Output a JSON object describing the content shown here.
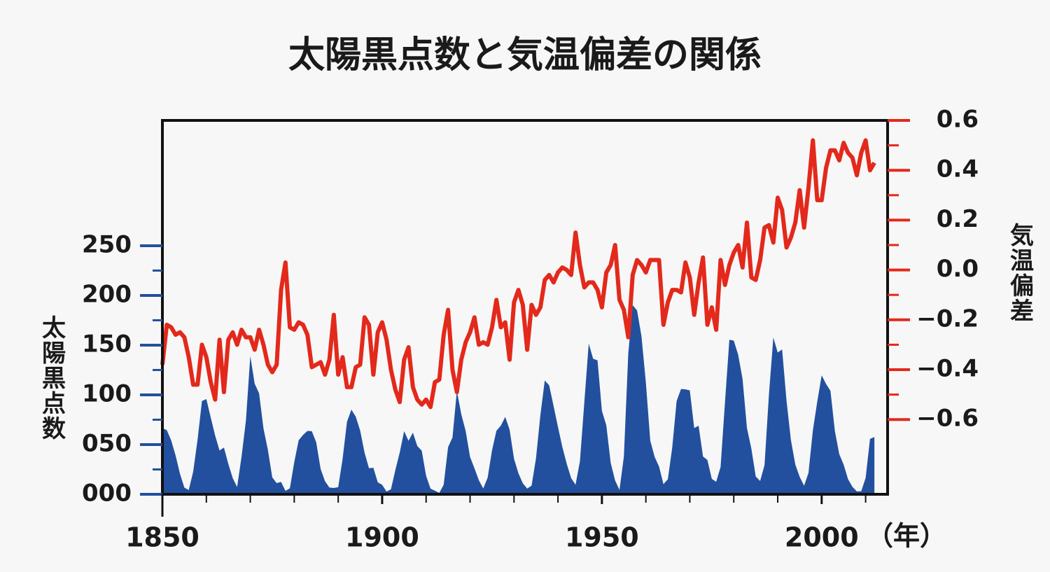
{
  "chart_data": {
    "type": "area-line",
    "title": "太陽黒点数と気温偏差の関係",
    "ylabel": "太陽黒点数",
    "y2label": "気温偏差",
    "xlabel": "（年）",
    "xlim": [
      1850,
      2015
    ],
    "xticks": [
      1850,
      1900,
      1950,
      2000
    ],
    "xminorticks": [
      1860,
      1870,
      1880,
      1890,
      1910,
      1920,
      1930,
      1940,
      1960,
      1970,
      1980,
      1990,
      2010
    ],
    "ylim": [
      0,
      376
    ],
    "yticks": [
      {
        "value": 0,
        "label": "000"
      },
      {
        "value": 50,
        "label": "050"
      },
      100,
      150,
      200,
      250
    ],
    "yminorticks": [
      25,
      75,
      125,
      175,
      225
    ],
    "y2lim": [
      -0.9,
      0.6
    ],
    "y2ticks": [
      0.6,
      0.4,
      0.2,
      {
        "value": 0,
        "label": "0.0"
      },
      {
        "value": -0.2,
        "label": "−0.2"
      },
      {
        "value": -0.4,
        "label": "−0.4"
      },
      {
        "value": -0.6,
        "label": "−0.6"
      }
    ],
    "y2minorticks": [
      0.5,
      0.3,
      0.1,
      -0.1,
      -0.3,
      -0.5
    ],
    "x": [
      1850,
      1851,
      1852,
      1853,
      1854,
      1855,
      1856,
      1857,
      1858,
      1859,
      1860,
      1861,
      1862,
      1863,
      1864,
      1865,
      1866,
      1867,
      1868,
      1869,
      1870,
      1871,
      1872,
      1873,
      1874,
      1875,
      1876,
      1877,
      1878,
      1879,
      1880,
      1881,
      1882,
      1883,
      1884,
      1885,
      1886,
      1887,
      1888,
      1889,
      1890,
      1891,
      1892,
      1893,
      1894,
      1895,
      1896,
      1897,
      1898,
      1899,
      1900,
      1901,
      1902,
      1903,
      1904,
      1905,
      1906,
      1907,
      1908,
      1909,
      1910,
      1911,
      1912,
      1913,
      1914,
      1915,
      1916,
      1917,
      1918,
      1919,
      1920,
      1921,
      1922,
      1923,
      1924,
      1925,
      1926,
      1927,
      1928,
      1929,
      1930,
      1931,
      1932,
      1933,
      1934,
      1935,
      1936,
      1937,
      1938,
      1939,
      1940,
      1941,
      1942,
      1943,
      1944,
      1945,
      1946,
      1947,
      1948,
      1949,
      1950,
      1951,
      1952,
      1953,
      1954,
      1955,
      1956,
      1957,
      1958,
      1959,
      1960,
      1961,
      1962,
      1963,
      1964,
      1965,
      1966,
      1967,
      1968,
      1969,
      1970,
      1971,
      1972,
      1973,
      1974,
      1975,
      1976,
      1977,
      1978,
      1979,
      1980,
      1981,
      1982,
      1983,
      1984,
      1985,
      1986,
      1987,
      1988,
      1989,
      1990,
      1991,
      1992,
      1993,
      1994,
      1995,
      1996,
      1997,
      1998,
      1999,
      2000,
      2001,
      2002,
      2003,
      2004,
      2005,
      2006,
      2007,
      2008,
      2009,
      2010,
      2011,
      2012
    ],
    "series": [
      {
        "kind": "area",
        "color": "#22509e",
        "values": [
          66.5,
          64.5,
          54.2,
          39,
          20.6,
          6.7,
          4.3,
          22.7,
          54.8,
          93.8,
          95.8,
          77.2,
          59.1,
          44,
          47,
          30.5,
          16.3,
          7.3,
          37.6,
          74,
          139,
          111.2,
          101.6,
          66.2,
          44.7,
          17,
          11.3,
          12.4,
          3.4,
          6,
          32.3,
          54.3,
          59.7,
          63.7,
          63.5,
          52.2,
          25.4,
          13.1,
          6.8,
          6.3,
          7.1,
          35.6,
          73,
          85.1,
          78,
          64,
          41.8,
          26.2,
          26.7,
          12.1,
          9.5,
          2.7,
          5,
          24.4,
          42,
          63.5,
          53.8,
          62,
          48.5,
          43.9,
          18.6,
          5.7,
          3.6,
          1.4,
          9.6,
          47.4,
          57.1,
          103.9,
          80.6,
          63.6,
          37.6,
          26.1,
          14.2,
          5.8,
          16.7,
          44.3,
          63.9,
          69,
          77.8,
          65,
          35.7,
          21.2,
          11.1,
          5.7,
          8.7,
          36.1,
          79.7,
          114.4,
          109.6,
          88.8,
          67.8,
          47.5,
          30.6,
          16.3,
          9.6,
          33.2,
          92.6,
          151.6,
          136.3,
          134.7,
          83.9,
          69.4,
          31.5,
          13.9,
          4.4,
          38,
          141.7,
          190.2,
          184.8,
          159,
          112.3,
          53.9,
          37.6,
          27.9,
          10.2,
          15.1,
          47,
          93.8,
          105.9,
          105.5,
          104.5,
          66.6,
          68.9,
          38,
          34.5,
          15.5,
          12.6,
          27.5,
          92.5,
          155.4,
          154.6,
          140.4,
          115.9,
          66.6,
          45.9,
          17.9,
          13.4,
          29.4,
          100.2,
          157.6,
          142.6,
          145.7,
          94.3,
          54.6,
          29.9,
          17.5,
          8.6,
          21.5,
          64.3,
          93.3,
          119.6,
          111,
          104,
          63.7,
          40.4,
          29.8,
          15.2,
          7.5,
          2.9,
          3.1,
          16.5,
          55.7,
          57.6
        ]
      },
      {
        "kind": "line",
        "axis": "y2",
        "color": "#e3291b",
        "values": [
          -0.38,
          -0.22,
          -0.23,
          -0.26,
          -0.25,
          -0.27,
          -0.35,
          -0.46,
          -0.46,
          -0.3,
          -0.35,
          -0.45,
          -0.52,
          -0.28,
          -0.49,
          -0.28,
          -0.25,
          -0.3,
          -0.24,
          -0.27,
          -0.27,
          -0.32,
          -0.24,
          -0.3,
          -0.38,
          -0.41,
          -0.38,
          -0.08,
          0.03,
          -0.23,
          -0.24,
          -0.21,
          -0.22,
          -0.26,
          -0.39,
          -0.38,
          -0.37,
          -0.42,
          -0.36,
          -0.18,
          -0.42,
          -0.35,
          -0.47,
          -0.47,
          -0.39,
          -0.38,
          -0.19,
          -0.22,
          -0.42,
          -0.25,
          -0.21,
          -0.28,
          -0.4,
          -0.48,
          -0.53,
          -0.36,
          -0.31,
          -0.47,
          -0.52,
          -0.54,
          -0.52,
          -0.55,
          -0.45,
          -0.44,
          -0.26,
          -0.16,
          -0.4,
          -0.49,
          -0.36,
          -0.29,
          -0.25,
          -0.19,
          -0.3,
          -0.29,
          -0.3,
          -0.23,
          -0.12,
          -0.23,
          -0.21,
          -0.36,
          -0.13,
          -0.08,
          -0.14,
          -0.32,
          -0.14,
          -0.18,
          -0.15,
          -0.04,
          -0.02,
          -0.05,
          -0.01,
          0.01,
          0,
          -0.02,
          0.15,
          0.02,
          -0.07,
          -0.05,
          -0.05,
          -0.08,
          -0.15,
          -0.01,
          0.02,
          0.1,
          -0.12,
          -0.16,
          -0.27,
          -0.02,
          0.04,
          0.02,
          -0.01,
          0.04,
          0.04,
          0.04,
          -0.22,
          -0.13,
          -0.08,
          -0.08,
          -0.09,
          0.03,
          -0.03,
          -0.18,
          -0.05,
          0.05,
          -0.22,
          -0.15,
          -0.24,
          0.04,
          -0.06,
          0.02,
          0.07,
          0.1,
          0.01,
          0.19,
          -0.03,
          -0.04,
          0.04,
          0.17,
          0.18,
          0.11,
          0.29,
          0.24,
          0.09,
          0.13,
          0.19,
          0.32,
          0.17,
          0.33,
          0.52,
          0.28,
          0.28,
          0.41,
          0.48,
          0.48,
          0.44,
          0.51,
          0.47,
          0.45,
          0.38,
          0.47,
          0.52,
          0.4,
          0.43
        ]
      }
    ]
  }
}
